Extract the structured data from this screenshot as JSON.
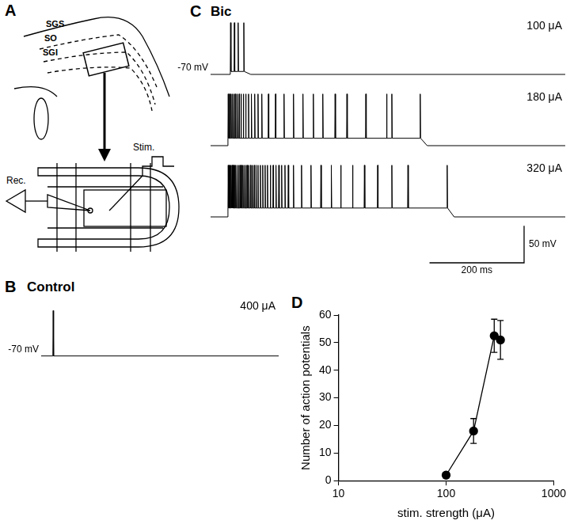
{
  "diagram": {
    "panel": "A",
    "layers": [
      "SGS",
      "SO",
      "SGI"
    ],
    "recording": "Rec.",
    "stimulation": "Stim."
  },
  "chart_data": [
    {
      "type": "line",
      "panel": "B",
      "title": "Control",
      "xlim": [
        0,
        500
      ],
      "ylim": [
        -85,
        5
      ],
      "tick_labels": false,
      "color": "#000000",
      "baseline": {
        "value": -70,
        "label": "-70 mV"
      },
      "series": [
        {
          "name": "400 μA",
          "spike_times": [
            25
          ],
          "spike_peak": -10,
          "plateau": -70
        }
      ]
    },
    {
      "type": "line",
      "panel": "C",
      "title": "Bic",
      "xlim": [
        0,
        750
      ],
      "ylim": [
        -85,
        5
      ],
      "tick_labels": false,
      "color": "#000000",
      "baseline": {
        "value": -70,
        "label": "-70 mV"
      },
      "scale_bar": {
        "x": {
          "value": 200,
          "label": "200 ms"
        },
        "y": {
          "value": 50,
          "label": "50 mV"
        }
      },
      "series": [
        {
          "name": "100 μA",
          "spike_times": [
            42,
            50,
            58,
            70
          ],
          "spike_peak": 0,
          "plateau": -66
        },
        {
          "name": "180 μA",
          "spike_times": [
            37,
            40,
            43,
            46,
            49,
            52,
            56,
            60,
            64,
            69,
            74,
            80,
            86,
            93,
            100,
            108,
            122,
            137,
            155,
            175,
            195,
            217,
            237,
            263,
            288,
            328,
            372,
            383,
            443
          ],
          "spike_peak": 0,
          "plateau": -60
        },
        {
          "name": "320 μA",
          "spike_times": [
            37,
            39,
            41,
            43,
            45,
            47,
            49,
            51,
            53,
            56,
            59,
            62,
            65,
            68,
            71,
            74,
            77,
            80,
            84,
            88,
            92,
            96,
            100,
            105,
            110,
            115,
            120,
            126,
            132,
            138,
            144,
            150,
            157,
            164,
            175,
            192,
            212,
            233,
            255,
            275,
            300,
            325,
            353,
            383,
            417,
            500
          ],
          "spike_peak": 0,
          "plateau": -58
        }
      ]
    },
    {
      "type": "scatter",
      "panel": "D",
      "x": [
        100,
        180,
        280,
        320
      ],
      "values": [
        2,
        18,
        52.5,
        51
      ],
      "errors": [
        1,
        4.5,
        6,
        7
      ],
      "xlim": [
        10,
        1000
      ],
      "xticks": [
        10,
        100,
        1000
      ],
      "ylim": [
        0,
        60
      ],
      "yticks": [
        0,
        10,
        20,
        30,
        40,
        50,
        60
      ],
      "log": "x",
      "grid": false,
      "color": "#000000",
      "marker": "circle",
      "line_style": "solid",
      "x_label": "stim. strength (μA)",
      "y_label": "Number of action potentials"
    }
  ]
}
